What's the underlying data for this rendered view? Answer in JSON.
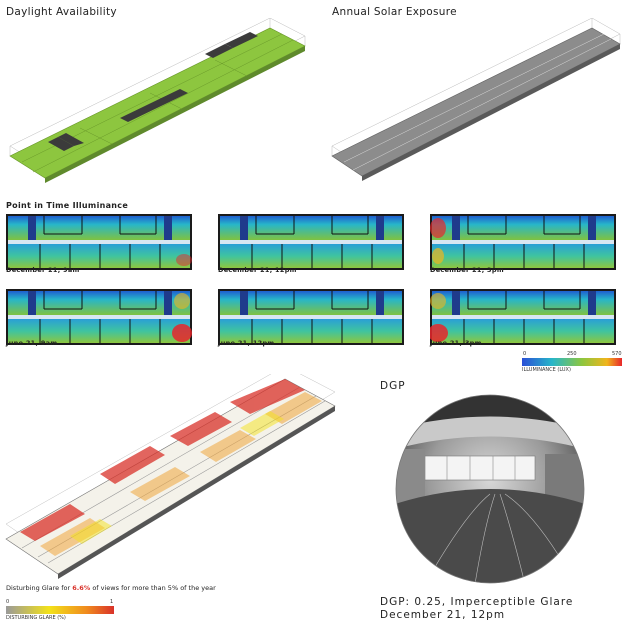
{
  "sections": {
    "daylight": "Daylight Availability",
    "solar": "Annual Solar Exposure",
    "pit": "Point in Time Illuminance",
    "dgp": "DGP"
  },
  "pit_captions": [
    "December 21, 9am",
    "December 21, 12pm",
    "December 21, 3pm",
    "June 21, 9am",
    "June 21, 12pm",
    "June 21, 3pm"
  ],
  "illum_legend": {
    "min": "0",
    "mid": "250",
    "max": "570",
    "label": "ILLUMINANCE (LUX)"
  },
  "glare_text": {
    "prefix": "Disturbing Glare for ",
    "value": "6.6%",
    "suffix": " of views for more than 5% of the year"
  },
  "glare_legend": {
    "min": "0",
    "max": "1",
    "label": "DISTURBING GLARE (%)"
  },
  "dgp_caption": {
    "line1": "DGP: 0.25, Imperceptible Glare",
    "line2": "December 21, 12pm"
  },
  "colors": {
    "daylight_green": "#8dc63f",
    "solar_gray": "#8c8c8c",
    "heat_blue": "#2a6fd6",
    "heat_cyan": "#27b6c9",
    "heat_green": "#7fc241",
    "heat_red": "#e8262b",
    "glare_red": "#d9322a",
    "glare_yellow": "#f3e21a"
  }
}
